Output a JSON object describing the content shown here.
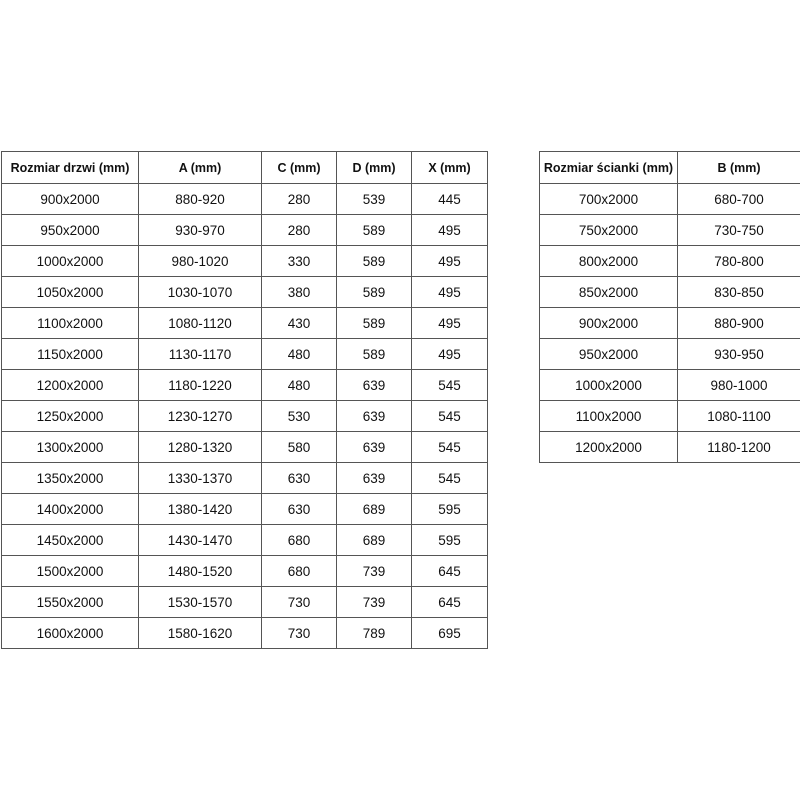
{
  "door_table": {
    "headers": [
      "Rozmiar drzwi (mm)",
      "A (mm)",
      "C (mm)",
      "D (mm)",
      "X (mm)"
    ],
    "rows": [
      [
        "900x2000",
        "880-920",
        "280",
        "539",
        "445"
      ],
      [
        "950x2000",
        "930-970",
        "280",
        "589",
        "495"
      ],
      [
        "1000x2000",
        "980-1020",
        "330",
        "589",
        "495"
      ],
      [
        "1050x2000",
        "1030-1070",
        "380",
        "589",
        "495"
      ],
      [
        "1100x2000",
        "1080-1120",
        "430",
        "589",
        "495"
      ],
      [
        "1150x2000",
        "1130-1170",
        "480",
        "589",
        "495"
      ],
      [
        "1200x2000",
        "1180-1220",
        "480",
        "639",
        "545"
      ],
      [
        "1250x2000",
        "1230-1270",
        "530",
        "639",
        "545"
      ],
      [
        "1300x2000",
        "1280-1320",
        "580",
        "639",
        "545"
      ],
      [
        "1350x2000",
        "1330-1370",
        "630",
        "639",
        "545"
      ],
      [
        "1400x2000",
        "1380-1420",
        "630",
        "689",
        "595"
      ],
      [
        "1450x2000",
        "1430-1470",
        "680",
        "689",
        "595"
      ],
      [
        "1500x2000",
        "1480-1520",
        "680",
        "739",
        "645"
      ],
      [
        "1550x2000",
        "1530-1570",
        "730",
        "739",
        "645"
      ],
      [
        "1600x2000",
        "1580-1620",
        "730",
        "789",
        "695"
      ]
    ]
  },
  "wall_table": {
    "headers": [
      "Rozmiar ścianki (mm)",
      "B (mm)"
    ],
    "rows": [
      [
        "700x2000",
        "680-700"
      ],
      [
        "750x2000",
        "730-750"
      ],
      [
        "800x2000",
        "780-800"
      ],
      [
        "850x2000",
        "830-850"
      ],
      [
        "900x2000",
        "880-900"
      ],
      [
        "950x2000",
        "930-950"
      ],
      [
        "1000x2000",
        "980-1000"
      ],
      [
        "1100x2000",
        "1080-1100"
      ],
      [
        "1200x2000",
        "1180-1200"
      ]
    ]
  }
}
